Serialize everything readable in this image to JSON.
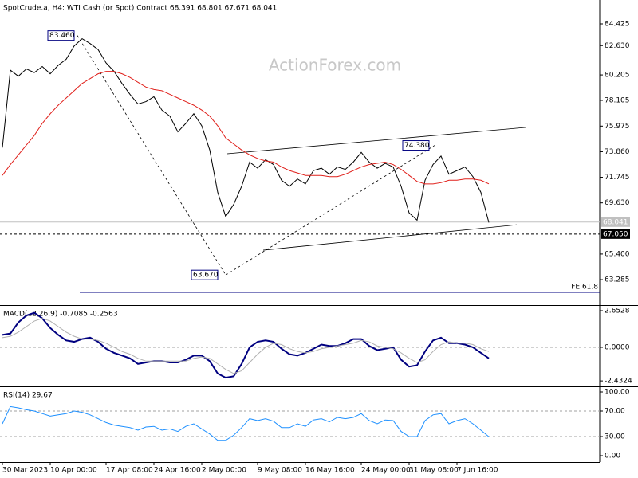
{
  "chart_data": [
    {
      "type": "line",
      "title": "SpotCrude.a, H4:  WTI Cash (or Spot) Contract  68.391 68.801 67.671 68.041",
      "watermark": "ActionForex.com",
      "series": [
        {
          "color": "#000000",
          "values": [
            74.2,
            80.6,
            80.1,
            80.7,
            80.4,
            80.9,
            80.3,
            81.0,
            81.5,
            82.6,
            83.2,
            82.8,
            82.3,
            81.2,
            80.5,
            79.5,
            78.6,
            77.8,
            78.0,
            78.4,
            77.3,
            76.8,
            75.5,
            76.2,
            77.0,
            76.0,
            74.0,
            70.5,
            68.5,
            69.5,
            71.0,
            73.0,
            72.5,
            73.2,
            72.8,
            71.5,
            71.0,
            71.6,
            71.2,
            72.3,
            72.5,
            72.0,
            72.6,
            72.4,
            73.0,
            73.8,
            73.0,
            72.5,
            72.9,
            72.6,
            71.0,
            68.8,
            68.2,
            71.5,
            72.8,
            73.5,
            72.0,
            72.3,
            72.6,
            71.8,
            70.5,
            68.0
          ]
        },
        {
          "color": "#e0201b",
          "values": [
            71.9,
            72.8,
            73.6,
            74.4,
            75.2,
            76.2,
            77.0,
            77.7,
            78.3,
            78.9,
            79.5,
            79.9,
            80.3,
            80.5,
            80.5,
            80.3,
            80.0,
            79.6,
            79.2,
            79.0,
            78.9,
            78.6,
            78.3,
            78.0,
            77.7,
            77.3,
            76.8,
            76.0,
            75.0,
            74.5,
            74.0,
            73.6,
            73.3,
            73.1,
            73.0,
            72.6,
            72.3,
            72.1,
            71.9,
            71.9,
            71.9,
            71.8,
            71.8,
            72.0,
            72.3,
            72.6,
            72.8,
            72.9,
            73.0,
            72.8,
            72.4,
            71.9,
            71.4,
            71.2,
            71.2,
            71.3,
            71.5,
            71.5,
            71.6,
            71.6,
            71.5,
            71.2
          ]
        }
      ],
      "ylim": [
        61.18,
        86.4
      ],
      "yticks": [
        84.425,
        {
          "value": 82.63,
          "label": "82.630"
        },
        80.205,
        78.105,
        75.975,
        {
          "value": 73.86,
          "label": "73.860"
        },
        71.745,
        {
          "value": 69.63,
          "label": "69.630"
        },
        {
          "value": 65.4,
          "label": "65.400"
        },
        63.285
      ],
      "annotations": [
        {
          "value": 83.46,
          "label": "83.460"
        },
        {
          "value": 63.67,
          "label": "63.670"
        },
        {
          "value": 74.38,
          "label": "74.380"
        }
      ],
      "price_tags": [
        {
          "value": 68.041,
          "label": "68.041",
          "color": "#c0c0c0",
          "dashed": false
        },
        {
          "value": 67.05,
          "label": "67.050",
          "color": "#000000",
          "dashed": true
        }
      ],
      "fe_line": {
        "value": 62.23,
        "text": "FE 61.8"
      },
      "trendlines": [
        {
          "start": 73.69,
          "end": 75.87,
          "dashed": false
        },
        {
          "start": 65.72,
          "end": 67.82,
          "dashed": false
        },
        {
          "start": 83.46,
          "end": 63.67,
          "dashed": true
        },
        {
          "start": 63.67,
          "end": 74.38,
          "dashed": true
        }
      ]
    },
    {
      "type": "line",
      "title": "MACD(12,26,9) -0.7085 -0.2563",
      "series": [
        {
          "color": "#000080",
          "values": [
            0.9,
            1.0,
            1.8,
            2.3,
            2.5,
            2.1,
            1.4,
            0.9,
            0.5,
            0.4,
            0.6,
            0.7,
            0.4,
            -0.1,
            -0.4,
            -0.6,
            -0.8,
            -1.2,
            -1.1,
            -1.0,
            -1.0,
            -1.1,
            -1.1,
            -0.9,
            -0.6,
            -0.6,
            -1.0,
            -1.9,
            -2.2,
            -2.1,
            -1.2,
            0.0,
            0.4,
            0.5,
            0.4,
            -0.1,
            -0.5,
            -0.6,
            -0.4,
            -0.1,
            0.2,
            0.1,
            0.1,
            0.3,
            0.6,
            0.6,
            0.1,
            -0.2,
            -0.1,
            0.0,
            -0.9,
            -1.4,
            -1.3,
            -0.3,
            0.5,
            0.7,
            0.3,
            0.3,
            0.2,
            0.0,
            -0.4,
            -0.8
          ]
        },
        {
          "color": "#b0b0b0",
          "values": [
            0.7,
            0.8,
            1.1,
            1.5,
            1.9,
            2.1,
            1.9,
            1.5,
            1.1,
            0.8,
            0.6,
            0.6,
            0.5,
            0.3,
            0.0,
            -0.3,
            -0.5,
            -0.8,
            -1.0,
            -1.0,
            -1.0,
            -1.0,
            -1.0,
            -1.0,
            -0.8,
            -0.7,
            -0.8,
            -1.2,
            -1.6,
            -1.9,
            -1.7,
            -1.1,
            -0.5,
            0.0,
            0.3,
            0.2,
            -0.1,
            -0.3,
            -0.4,
            -0.3,
            -0.1,
            0.0,
            0.1,
            0.2,
            0.3,
            0.5,
            0.4,
            0.1,
            0.0,
            -0.1,
            -0.4,
            -0.8,
            -1.1,
            -0.9,
            -0.3,
            0.2,
            0.4,
            0.3,
            0.3,
            0.2,
            -0.1,
            -0.3
          ]
        }
      ],
      "ylim": [
        -2.83,
        3.0
      ],
      "yticks": [
        2.6528,
        {
          "value": 0,
          "label": "0.0000"
        },
        -2.4324
      ],
      "levels": [
        0
      ]
    },
    {
      "type": "line",
      "title": "RSI(14) 29.67",
      "categories": [
        "30 Mar 2023",
        null,
        null,
        null,
        null,
        null,
        "10 Apr 00:00",
        null,
        null,
        null,
        null,
        null,
        null,
        "17 Apr 08:00",
        null,
        null,
        null,
        null,
        null,
        "24 Apr 16:00",
        null,
        null,
        null,
        null,
        null,
        "2 May 00:00",
        null,
        null,
        null,
        null,
        null,
        null,
        "9 May 08:00",
        null,
        null,
        null,
        null,
        null,
        "16 May 16:00",
        null,
        null,
        null,
        null,
        null,
        null,
        "24 May 00:00",
        null,
        null,
        null,
        null,
        null,
        "31 May 08:00",
        null,
        null,
        null,
        null,
        null,
        "7 Jun 16:00",
        null,
        null,
        null,
        null
      ],
      "series": [
        {
          "color": "#1e90ff",
          "values": [
            50,
            77,
            75,
            72,
            70,
            66,
            62,
            64,
            66,
            70,
            68,
            64,
            58,
            52,
            48,
            46,
            44,
            40,
            45,
            46,
            40,
            42,
            38,
            46,
            50,
            42,
            34,
            24,
            24,
            32,
            44,
            58,
            55,
            58,
            54,
            44,
            44,
            50,
            46,
            56,
            58,
            53,
            60,
            58,
            60,
            66,
            55,
            50,
            56,
            55,
            38,
            30,
            30,
            55,
            64,
            66,
            50,
            55,
            58,
            50,
            40,
            29.67
          ]
        }
      ],
      "ylim": [
        -10,
        107.5
      ],
      "yticks": [
        {
          "value": 100,
          "label": "100.00"
        },
        {
          "value": 70,
          "label": "70.00"
        },
        {
          "value": 30,
          "label": "30.00"
        },
        {
          "value": 0,
          "label": "0.00"
        }
      ],
      "levels": [
        70,
        30
      ]
    }
  ]
}
